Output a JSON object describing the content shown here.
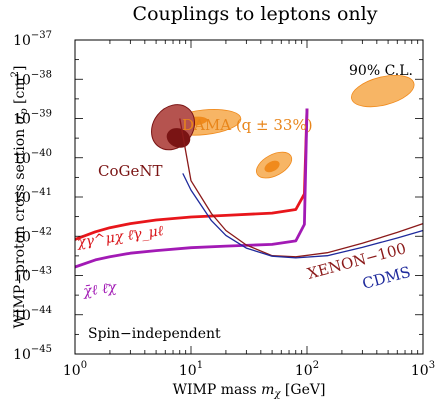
{
  "chart_data": {
    "type": "line",
    "title": "Couplings to leptons only",
    "xlabel_prefix": "WIMP mass ",
    "xlabel_var": "m",
    "xlabel_sub": "χ",
    "xlabel_unit": " [GeV]",
    "ylabel_prefix": "WIMP−proton cross section ",
    "ylabel_var": "σ",
    "ylabel_sub": "p",
    "ylabel_unit": " [cm",
    "ylabel_unit_sup": "2",
    "ylabel_unit_end": "]",
    "x_scale": "log",
    "y_scale": "log",
    "xlim": [
      1,
      1000
    ],
    "ylim": [
      1e-45,
      1e-37
    ],
    "x_ticks": [
      {
        "value": 1,
        "base": "10",
        "exp": "0"
      },
      {
        "value": 10,
        "base": "10",
        "exp": "1"
      },
      {
        "value": 100,
        "base": "10",
        "exp": "2"
      },
      {
        "value": 1000,
        "base": "10",
        "exp": "3"
      }
    ],
    "y_ticks": [
      {
        "value": 1e-45,
        "base": "10",
        "exp": "−45"
      },
      {
        "value": 1e-44,
        "base": "10",
        "exp": "−44"
      },
      {
        "value": 1e-43,
        "base": "10",
        "exp": "−43"
      },
      {
        "value": 1e-42,
        "base": "10",
        "exp": "−42"
      },
      {
        "value": 1e-41,
        "base": "10",
        "exp": "−41"
      },
      {
        "value": 1e-40,
        "base": "10",
        "exp": "−40"
      },
      {
        "value": 1e-39,
        "base": "10",
        "exp": "−39"
      },
      {
        "value": 1e-38,
        "base": "10",
        "exp": "−38"
      },
      {
        "value": 1e-37,
        "base": "10",
        "exp": "−37"
      }
    ],
    "annotations": {
      "confidence": "90% C.L.",
      "spin": "Spin−independent",
      "dama": "DAMA (q ± 33%)",
      "cogent": "CoGeNT",
      "xenon": "XENON−100",
      "cdms": "CDMS",
      "vector_label": "χ̄γ^μχ ℓ̄γ_μℓ",
      "scalar_label": "χ̄ℓ ℓ̄χ"
    },
    "colors": {
      "vector": "#e8161b",
      "scalar": "#a21ab5",
      "xenon": "#8b1a1a",
      "cdms": "#1f2a9c",
      "dama_fill": "#f7b565",
      "dama_core": "#f08a1c",
      "cogent_fill": "#b5534f",
      "cogent_core": "#7a1414",
      "dama_label": "#e8851a",
      "cogent_label": "#7a1414",
      "xenon_label": "#8b1a1a",
      "cdms_label": "#1f2a9c",
      "vector_label": "#d9151a",
      "scalar_label": "#a21ab5"
    },
    "series": [
      {
        "key": "vector",
        "x": [
          1,
          1.5,
          2,
          3,
          5,
          10,
          20,
          50,
          80,
          95,
          100
        ],
        "y": [
          8.3e-43,
          1.3e-42,
          1.65e-42,
          2.1e-42,
          2.6e-42,
          3.1e-42,
          3.4e-42,
          3.9e-42,
          4.8e-42,
          1.2e-41,
          1.8e-39
        ]
      },
      {
        "key": "scalar",
        "x": [
          1,
          1.5,
          2,
          3,
          5,
          10,
          20,
          50,
          80,
          95,
          100
        ],
        "y": [
          1.65e-43,
          2.5e-43,
          3e-43,
          3.7e-43,
          4.3e-43,
          5.1e-43,
          5.6e-43,
          6.2e-43,
          7.6e-43,
          2e-42,
          1.8e-39
        ]
      },
      {
        "key": "xenon",
        "x": [
          8,
          10,
          15,
          20,
          30,
          50,
          80,
          150,
          300,
          600,
          1000
        ],
        "y": [
          1e-39,
          2.6e-41,
          3.8e-42,
          1.4e-42,
          6e-43,
          3.2e-43,
          3e-43,
          3.8e-43,
          6.6e-43,
          1.25e-42,
          2.1e-42
        ]
      },
      {
        "key": "cdms",
        "x": [
          8.5,
          10,
          15,
          20,
          30,
          50,
          80,
          150,
          300,
          600,
          1000
        ],
        "y": [
          4e-41,
          1.5e-41,
          2.5e-42,
          1.05e-42,
          5e-43,
          3.1e-43,
          2.8e-43,
          3.2e-43,
          5.2e-43,
          9e-43,
          1.4e-42
        ]
      }
    ],
    "regions": [
      {
        "key": "dama_low_outer",
        "x_center": 13,
        "y_center": 8e-40,
        "x_span": [
          6.5,
          28
        ],
        "y_span": [
          4e-40,
          1.7e-39
        ]
      },
      {
        "key": "dama_low_core",
        "x_center": 10.5,
        "y_center": 8.5e-40,
        "x_span": [
          8,
          14
        ],
        "y_span": [
          6.5e-40,
          1.1e-39
        ]
      },
      {
        "key": "dama_high_outer",
        "x_center": 52,
        "y_center": 6.5e-41,
        "x_span": [
          35,
          75
        ],
        "y_span": [
          3.5e-41,
          1.2e-40
        ]
      },
      {
        "key": "dama_high_core",
        "x_center": 50,
        "y_center": 6e-41,
        "x_span": [
          42,
          58
        ],
        "y_span": [
          4.5e-41,
          8e-41
        ]
      },
      {
        "key": "dama_right",
        "x_center": 450,
        "y_center": 5e-39,
        "x_span": [
          280,
          1000
        ],
        "y_span": [
          2.5e-39,
          1.3e-38
        ]
      },
      {
        "key": "cogent_outer",
        "x_center": 7,
        "y_center": 6e-40,
        "x_span": [
          4.8,
          10.5
        ],
        "y_span": [
          1.3e-40,
          2.2e-39
        ]
      },
      {
        "key": "cogent_core",
        "x_center": 7.8,
        "y_center": 3.2e-40,
        "x_span": [
          6.2,
          10
        ],
        "y_span": [
          1.8e-40,
          5.5e-40
        ]
      }
    ]
  }
}
